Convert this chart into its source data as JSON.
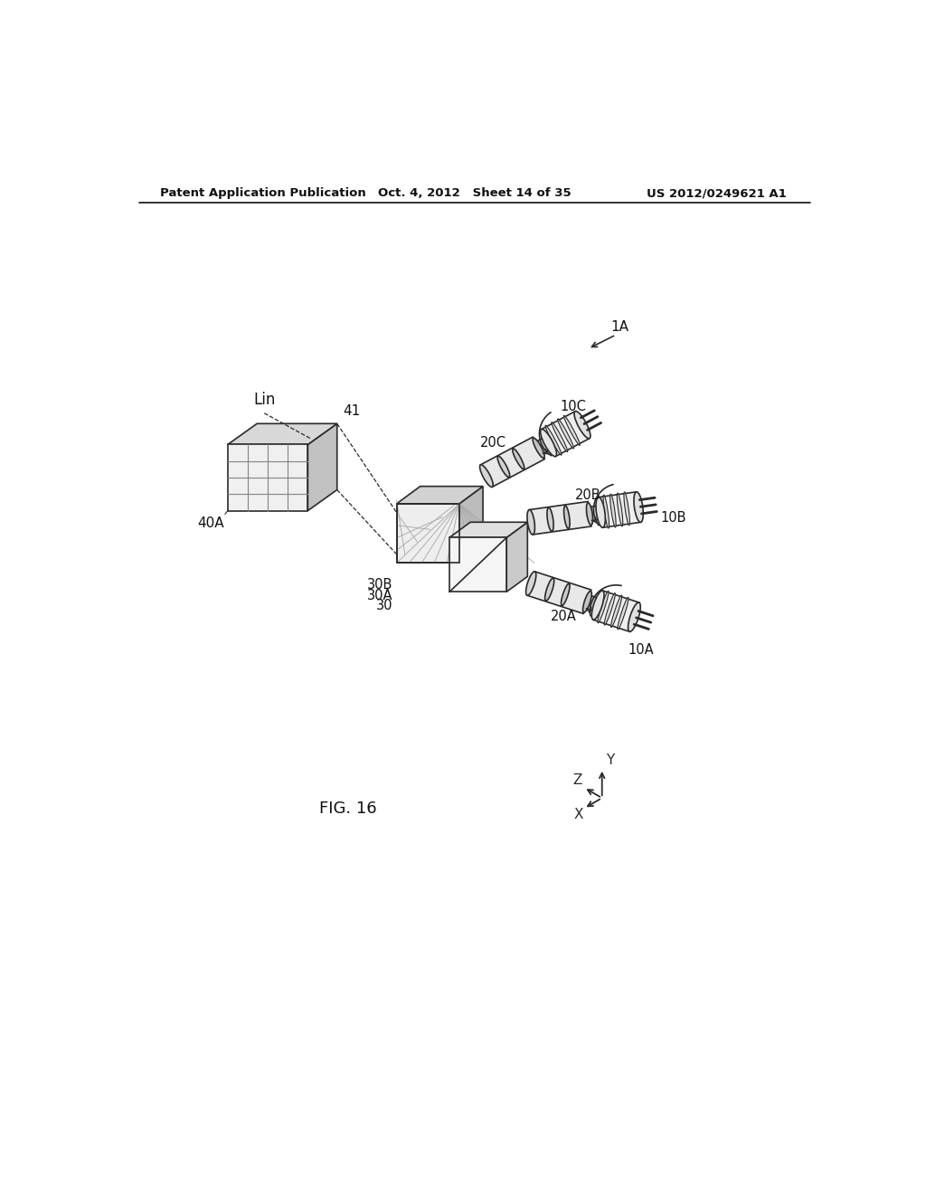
{
  "bg_color": "#ffffff",
  "line_color": "#2a2a2a",
  "header_left": "Patent Application Publication",
  "header_mid": "Oct. 4, 2012   Sheet 14 of 35",
  "header_right": "US 2012/0249621 A1",
  "figure_label": "FIG. 16",
  "label_1A": "1A",
  "label_Lin": "Lin",
  "label_41": "41",
  "label_40A": "40A",
  "label_30": "30",
  "label_30A": "30A",
  "label_30B": "30B",
  "label_20A": "20A",
  "label_20B": "20B",
  "label_20C": "20C",
  "label_10A": "10A",
  "label_10B": "10B",
  "label_10C": "10C",
  "diagram_scale": 1.0
}
